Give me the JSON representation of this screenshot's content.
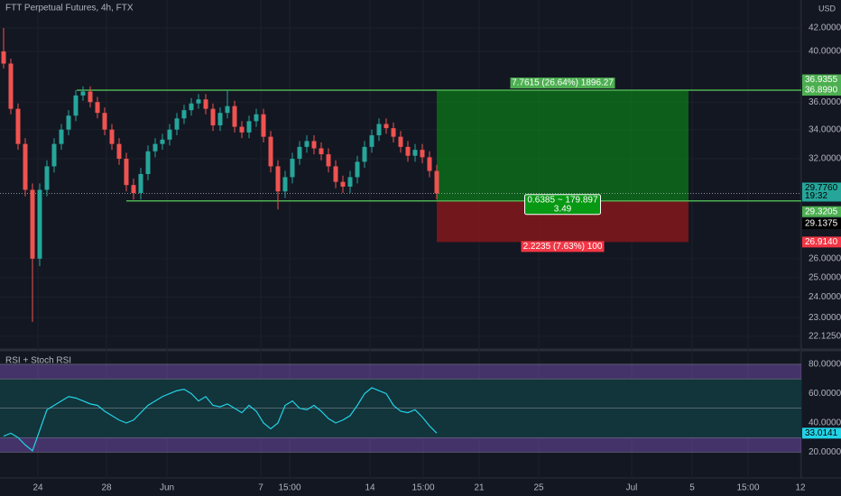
{
  "header": {
    "title": "FTT Perpetual Futures, 4h, FTX",
    "currency": "USD"
  },
  "price_pane": {
    "type": "candlestick",
    "log_scale": true,
    "ylim": [
      21.63,
      44.51
    ],
    "yticks": [
      {
        "value": 42,
        "label": "42.0000"
      },
      {
        "value": 40,
        "label": "40.0000"
      },
      {
        "value": 36,
        "label": "36.0000"
      },
      {
        "value": 34,
        "label": "34.0000"
      },
      {
        "value": 32,
        "label": "32.0000"
      },
      {
        "value": 26,
        "label": "26.0000"
      },
      {
        "value": 25,
        "label": "25.0000"
      },
      {
        "value": 24,
        "label": "24.0000"
      },
      {
        "value": 23,
        "label": "23.0000"
      },
      {
        "value": 22.125,
        "label": "22.1250"
      }
    ],
    "up_color": "#26a69a",
    "down_color": "#ef5350",
    "open": [
      40,
      39,
      35.5,
      33,
      30,
      26,
      30,
      31.5,
      33,
      34,
      35,
      36.5,
      36.8,
      36,
      35.2,
      34,
      33,
      32,
      30.3,
      29.8,
      31,
      32.5,
      33,
      33.3,
      34,
      34.8,
      35.4,
      35.9,
      36.2,
      35.5,
      34.3,
      35.2,
      35.7,
      34.2,
      33.8,
      34.6,
      35.1,
      33.5,
      31.5,
      29.9,
      30.8,
      32,
      32.8,
      33.2,
      32.7,
      32.3,
      31.5,
      30.5,
      30.2,
      30.8,
      31.8,
      32.8,
      33.6,
      34.4,
      34.1,
      33.5,
      32.8,
      32.2,
      32.6,
      32.1,
      31.2
    ],
    "high": [
      42,
      39.4,
      35.9,
      33.4,
      30.4,
      30.4,
      31.9,
      33.4,
      34.4,
      35.4,
      36.9,
      37.2,
      37.2,
      36.4,
      35.6,
      34.4,
      33.4,
      32.4,
      30.7,
      31.4,
      32.9,
      33.4,
      33.7,
      34.4,
      35.2,
      35.8,
      36.3,
      36.6,
      36.6,
      35.9,
      35.6,
      36.9,
      36.1,
      34.6,
      35,
      35.5,
      35.5,
      33.9,
      31.9,
      31.2,
      32.4,
      33.2,
      33.6,
      33.6,
      33.1,
      32.7,
      31.9,
      30.9,
      31.2,
      32.2,
      33.2,
      34,
      34.8,
      34.8,
      34.5,
      33.9,
      33.2,
      33,
      33,
      32.5,
      31.6
    ],
    "low": [
      38.6,
      35.1,
      32.6,
      29.6,
      22.8,
      25.6,
      29.6,
      31.1,
      32.6,
      33.6,
      34.6,
      36.1,
      35.6,
      34.8,
      33.6,
      32.6,
      31.6,
      29.9,
      29.4,
      29.4,
      30.6,
      32.1,
      32.6,
      32.9,
      33.6,
      34.4,
      35,
      35.5,
      35.1,
      33.9,
      33.9,
      34.8,
      33.8,
      33.4,
      33.4,
      34.2,
      33.1,
      31.1,
      28.8,
      29.5,
      30.4,
      31.6,
      32.4,
      32.3,
      31.9,
      31.1,
      30.1,
      29.8,
      29.8,
      30.4,
      31.4,
      32.4,
      33.2,
      33.7,
      33.1,
      32.4,
      31.8,
      31.8,
      31.7,
      30.8,
      29.4
    ],
    "close": [
      39,
      35.5,
      33,
      30,
      26,
      30,
      31.5,
      33,
      34,
      35,
      36.5,
      36.8,
      36,
      35.2,
      34,
      33,
      32,
      30.3,
      29.8,
      31,
      32.5,
      33,
      33.3,
      34,
      34.8,
      35.4,
      35.9,
      36.2,
      35.5,
      34.3,
      35.2,
      35.7,
      34.2,
      33.8,
      34.6,
      35.1,
      33.5,
      31.5,
      29.9,
      30.8,
      32,
      32.8,
      33.2,
      32.7,
      32.3,
      31.5,
      30.5,
      30.2,
      30.8,
      31.8,
      32.8,
      33.6,
      34.4,
      34.1,
      33.5,
      32.8,
      32.2,
      32.6,
      32.1,
      31.2,
      29.776
    ]
  },
  "tags": [
    {
      "value": 36.9355,
      "label": "36.9355",
      "color": "#4caf50"
    },
    {
      "value": 36.899,
      "label": "36.8990",
      "color": "#4caf50"
    },
    {
      "value": 29.776,
      "label": "29.7760",
      "color": "#26a69a"
    },
    {
      "value": 29.3205,
      "label": "29.3205",
      "color": "#4caf50"
    },
    {
      "value": 29.1375,
      "label": "29.1375",
      "color": "#000000"
    },
    {
      "value": 26.914,
      "label": "26.9140",
      "color": "#f23645"
    }
  ],
  "countdown": "19:32",
  "position": {
    "target_label": "7.7615 (26.64%) 1896.27",
    "entry_label": "0.6385 ~ 179.897",
    "ratio_label": "3.49",
    "stop_label": "2.2235 (7.63%) 100"
  },
  "indicator": {
    "title": "RSI + Stoch RSI",
    "ylim": [
      9.85,
      88.6
    ],
    "yticks": [
      {
        "value": 80,
        "label": "80.0000"
      },
      {
        "value": 60,
        "label": "60.0000"
      },
      {
        "value": 40,
        "label": "40.0000"
      },
      {
        "value": 20,
        "label": "20.0000"
      }
    ],
    "bands": {
      "outer": [
        20,
        80
      ],
      "inner": [
        30,
        70
      ],
      "mid": 50
    },
    "color": "#22d3e6",
    "values": [
      31,
      33,
      30,
      25,
      21,
      35,
      49,
      52,
      55,
      58,
      57,
      55,
      53,
      52,
      48,
      45,
      42,
      40,
      42,
      47,
      52,
      55,
      58,
      60,
      62,
      63,
      60,
      55,
      58,
      52,
      51,
      53,
      50,
      47,
      52,
      48,
      40,
      36,
      40,
      52,
      55,
      50,
      49,
      52,
      48,
      43,
      40,
      42,
      45,
      52,
      60,
      64,
      62,
      60,
      52,
      48,
      47,
      49,
      44,
      38,
      33.0141
    ]
  },
  "time_axis": {
    "labels": [
      "24",
      "28",
      "Jun",
      "7",
      "15:00",
      "14",
      "15:00",
      "21",
      "25",
      "Jul",
      "5",
      "15:00",
      "12"
    ]
  }
}
